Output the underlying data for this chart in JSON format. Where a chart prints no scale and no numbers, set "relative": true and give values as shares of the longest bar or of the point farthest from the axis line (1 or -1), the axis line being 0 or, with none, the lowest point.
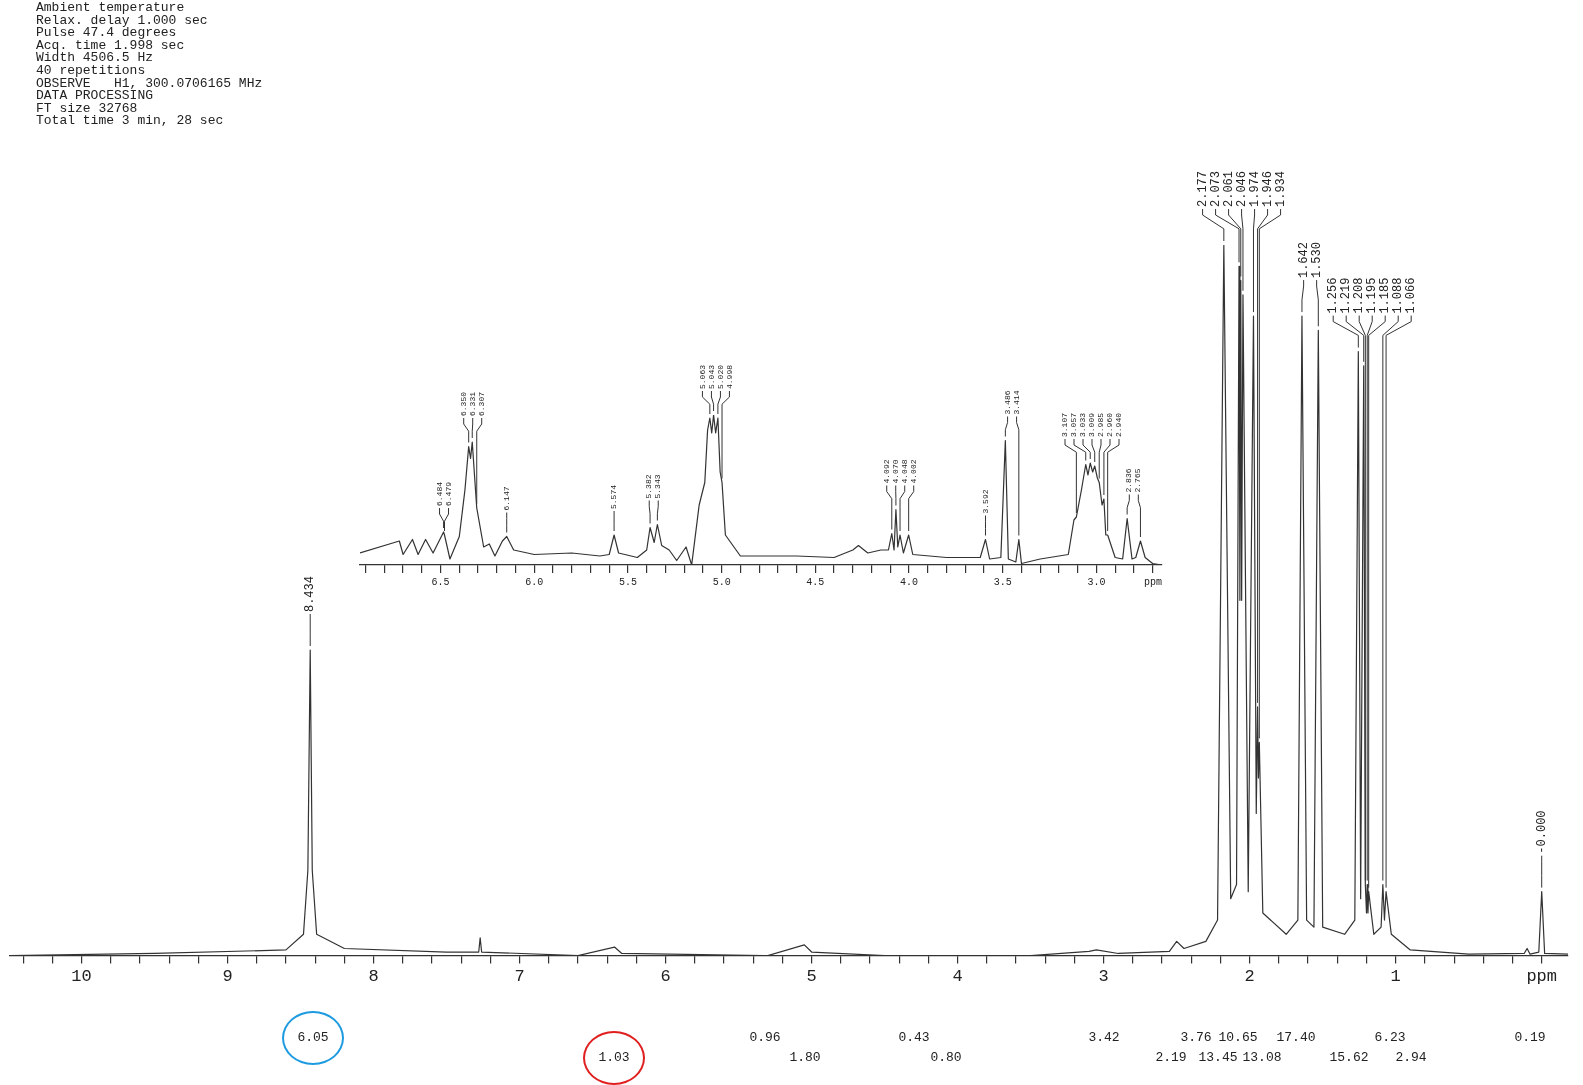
{
  "chart_data": [
    {
      "type": "line",
      "relative": true,
      "x": [
        10.49,
        9.5,
        8.6,
        8.48,
        8.45,
        8.434,
        8.42,
        8.39,
        8.2,
        7.5,
        7.28,
        7.27,
        7.26,
        6.6,
        6.35,
        6.3,
        5.3,
        5.05,
        5.0,
        4.5,
        3.5,
        3.1,
        3.05,
        2.9,
        2.55,
        2.5,
        2.45,
        2.3,
        2.22,
        2.177,
        2.13,
        2.09,
        2.073,
        2.067,
        2.061,
        2.055,
        2.046,
        2.01,
        1.974,
        1.955,
        1.946,
        1.94,
        1.934,
        1.91,
        1.75,
        1.67,
        1.642,
        1.61,
        1.56,
        1.53,
        1.5,
        1.35,
        1.28,
        1.256,
        1.24,
        1.219,
        1.208,
        1.2,
        1.195,
        1.19,
        1.185,
        1.15,
        1.1,
        1.088,
        1.077,
        1.066,
        1.03,
        0.9,
        0.5,
        0.12,
        0.1,
        0.08,
        0.02,
        0.0,
        -0.02,
        -0.18
      ],
      "series": [
        {
          "color": "#333333",
          "values": [
            0.0,
            0.003,
            0.008,
            0.03,
            0.12,
            0.43,
            0.12,
            0.03,
            0.01,
            0.005,
            0.005,
            0.025,
            0.005,
            0.0,
            0.012,
            0.003,
            0.0,
            0.015,
            0.005,
            0.0,
            0.0,
            0.006,
            0.008,
            0.003,
            0.006,
            0.02,
            0.01,
            0.02,
            0.05,
            1.0,
            0.08,
            0.1,
            0.97,
            0.5,
            0.95,
            0.5,
            0.93,
            0.09,
            0.9,
            0.2,
            0.35,
            0.25,
            0.3,
            0.06,
            0.03,
            0.05,
            0.9,
            0.05,
            0.04,
            0.88,
            0.04,
            0.03,
            0.05,
            0.85,
            0.08,
            0.83,
            0.1,
            0.06,
            0.1,
            0.06,
            0.09,
            0.03,
            0.04,
            0.1,
            0.05,
            0.09,
            0.03,
            0.008,
            0.002,
            0.003,
            0.01,
            0.002,
            0.005,
            0.09,
            0.003,
            0.002
          ]
        }
      ],
      "xlim": [
        10.49,
        -0.18
      ],
      "xticks": [
        10,
        {
          "value": 10.4,
          "label": null
        },
        {
          "value": 10.2,
          "label": null
        },
        {
          "value": 9.8,
          "label": null
        },
        {
          "value": 9.6,
          "label": null
        },
        {
          "value": 9.4,
          "label": null
        },
        {
          "value": 9.2,
          "label": null
        },
        9,
        {
          "value": 8.8,
          "label": null
        },
        {
          "value": 8.6,
          "label": null
        },
        {
          "value": 8.4,
          "label": null
        },
        {
          "value": 8.2,
          "label": null
        },
        8,
        {
          "value": 7.8,
          "label": null
        },
        {
          "value": 7.6,
          "label": null
        },
        {
          "value": 7.4,
          "label": null
        },
        {
          "value": 7.2,
          "label": null
        },
        7,
        {
          "value": 6.8,
          "label": null
        },
        {
          "value": 6.6,
          "label": null
        },
        {
          "value": 6.4,
          "label": null
        },
        {
          "value": 6.2,
          "label": null
        },
        6,
        {
          "value": 5.8,
          "label": null
        },
        {
          "value": 5.6,
          "label": null
        },
        {
          "value": 5.4,
          "label": null
        },
        {
          "value": 5.2,
          "label": null
        },
        5,
        {
          "value": 4.8,
          "label": null
        },
        {
          "value": 4.6,
          "label": null
        },
        {
          "value": 4.4,
          "label": null
        },
        {
          "value": 4.2,
          "label": null
        },
        4,
        {
          "value": 3.8,
          "label": null
        },
        {
          "value": 3.6,
          "label": null
        },
        {
          "value": 3.4,
          "label": null
        },
        {
          "value": 3.2,
          "label": null
        },
        3,
        {
          "value": 2.8,
          "label": null
        },
        {
          "value": 2.6,
          "label": null
        },
        {
          "value": 2.4,
          "label": null
        },
        {
          "value": 2.2,
          "label": null
        },
        2,
        {
          "value": 1.8,
          "label": null
        },
        {
          "value": 1.6,
          "label": null
        },
        {
          "value": 1.4,
          "label": null
        },
        {
          "value": 1.2,
          "label": null
        },
        1,
        {
          "value": 0.8,
          "label": null
        },
        {
          "value": 0.6,
          "label": null
        },
        {
          "value": 0.4,
          "label": null
        },
        {
          "value": 0.2,
          "label": null
        },
        {
          "value": 0,
          "label": "ppm"
        }
      ],
      "marker": "none",
      "annotations": [
        "Ambient temperature",
        "Relax. delay 1.000 sec",
        "Pulse 47.4 degrees",
        "Acq. time 1.998 sec",
        "Width 4506.5 Hz",
        "40 repetitions",
        "OBSERVE   H1, 300.0706165 MHz",
        "DATA PROCESSING",
        "FT size 32768",
        "Total time 3 min, 28 sec",
        {
          "text": "8.434",
          "x": 8.434,
          "y": 0.43
        },
        {
          "text": "2.177",
          "x": 2.177,
          "y": 1.0
        },
        {
          "text": "2.073",
          "x": 2.073,
          "y": 0.97
        },
        {
          "text": "2.061",
          "x": 2.061,
          "y": 0.95
        },
        {
          "text": "2.046",
          "x": 2.046,
          "y": 0.93
        },
        {
          "text": "1.974",
          "x": 1.974,
          "y": 0.9
        },
        {
          "text": "1.946",
          "x": 1.946,
          "y": 0.35
        },
        {
          "text": "1.934",
          "x": 1.934,
          "y": 0.3
        },
        {
          "text": "1.642",
          "x": 1.642,
          "y": 0.9
        },
        {
          "text": "1.530",
          "x": 1.53,
          "y": 0.88
        },
        {
          "text": "1.256",
          "x": 1.256,
          "y": 0.85
        },
        {
          "text": "1.219",
          "x": 1.219,
          "y": 0.83
        },
        {
          "text": "1.208",
          "x": 1.208,
          "y": 0.1
        },
        {
          "text": "1.195",
          "x": 1.195,
          "y": 0.1
        },
        {
          "text": "1.185",
          "x": 1.185,
          "y": 0.09
        },
        {
          "text": "1.088",
          "x": 1.088,
          "y": 0.1
        },
        {
          "text": "1.066",
          "x": 1.066,
          "y": 0.09
        },
        {
          "text": "-0.000",
          "x": 0,
          "y": 0.09
        },
        "6.05",
        "1.03",
        "0.96",
        "1.80",
        "0.43",
        "0.80",
        "3.42",
        "2.19",
        "3.76",
        "13.45",
        "10.65",
        "13.08",
        "17.40",
        "15.62",
        "6.23",
        "2.94",
        "0.19"
      ]
    },
    {
      "type": "line",
      "relative": true,
      "xlabel": "ppm",
      "x": [
        6.93,
        6.72,
        6.7,
        6.65,
        6.62,
        6.58,
        6.54,
        6.484,
        6.479,
        6.45,
        6.4,
        6.37,
        6.35,
        6.34,
        6.331,
        6.307,
        6.27,
        6.24,
        6.21,
        6.17,
        6.147,
        6.11,
        6.0,
        5.8,
        5.65,
        5.6,
        5.574,
        5.55,
        5.45,
        5.4,
        5.382,
        5.36,
        5.343,
        5.32,
        5.28,
        5.24,
        5.19,
        5.16,
        5.12,
        5.09,
        5.075,
        5.063,
        5.053,
        5.043,
        5.032,
        5.02,
        5.008,
        4.998,
        4.98,
        4.9,
        4.8,
        4.6,
        4.4,
        4.3,
        4.27,
        4.22,
        4.15,
        4.11,
        4.092,
        4.08,
        4.07,
        4.06,
        4.048,
        4.03,
        4.002,
        3.98,
        3.8,
        3.62,
        3.592,
        3.57,
        3.51,
        3.486,
        3.47,
        3.43,
        3.414,
        3.4,
        3.3,
        3.25,
        3.15,
        3.12,
        3.107,
        3.08,
        3.057,
        3.045,
        3.033,
        3.02,
        3.009,
        2.995,
        2.985,
        2.97,
        2.96,
        2.95,
        2.94,
        2.9,
        2.86,
        2.836,
        2.81,
        2.79,
        2.765,
        2.74,
        2.7,
        2.65
      ],
      "series": [
        {
          "color": "#333333",
          "values": [
            0.08,
            0.16,
            0.07,
            0.17,
            0.07,
            0.17,
            0.08,
            0.22,
            0.2,
            0.04,
            0.19,
            0.5,
            0.79,
            0.71,
            0.82,
            0.38,
            0.12,
            0.14,
            0.06,
            0.16,
            0.19,
            0.1,
            0.07,
            0.08,
            0.06,
            0.07,
            0.2,
            0.08,
            0.05,
            0.1,
            0.25,
            0.15,
            0.27,
            0.13,
            0.1,
            0.03,
            0.12,
            0,
            0.4,
            0.55,
            0.9,
            0.98,
            0.88,
            1,
            0.88,
            0.98,
            0.62,
            0.55,
            0.2,
            0.06,
            0.06,
            0.06,
            0.05,
            0.1,
            0.13,
            0.08,
            0.1,
            0.1,
            0.21,
            0.1,
            0.37,
            0.12,
            0.2,
            0.08,
            0.2,
            0.07,
            0.05,
            0.05,
            0.17,
            0.04,
            0.05,
            0.83,
            0.04,
            0.02,
            0.17,
            0.01,
            0.04,
            0.05,
            0.07,
            0.3,
            0.32,
            0.5,
            0.67,
            0.6,
            0.68,
            0.62,
            0.66,
            0.58,
            0.55,
            0.4,
            0.44,
            0.2,
            0.2,
            0.05,
            0.04,
            0.31,
            0.04,
            0.05,
            0.16,
            0.05,
            0.01,
            0
          ]
        }
      ],
      "xlim": [
        6.93,
        2.65
      ],
      "xticks": [
        {
          "value": 6.9,
          "label": null
        },
        {
          "value": 6.8,
          "label": null
        },
        {
          "value": 6.7,
          "label": null
        },
        {
          "value": 6.6,
          "label": null
        },
        6.5,
        {
          "value": 6.4,
          "label": null
        },
        {
          "value": 6.3,
          "label": null
        },
        {
          "value": 6.2,
          "label": null
        },
        {
          "value": 6.1,
          "label": null
        },
        {
          "value": 6,
          "label": "6.0"
        },
        {
          "value": 5.9,
          "label": null
        },
        {
          "value": 5.8,
          "label": null
        },
        {
          "value": 5.7,
          "label": null
        },
        {
          "value": 5.6,
          "label": null
        },
        5.5,
        {
          "value": 5.4,
          "label": null
        },
        {
          "value": 5.3,
          "label": null
        },
        {
          "value": 5.2,
          "label": null
        },
        {
          "value": 5.1,
          "label": null
        },
        {
          "value": 5,
          "label": "5.0"
        },
        {
          "value": 4.9,
          "label": null
        },
        {
          "value": 4.8,
          "label": null
        },
        {
          "value": 4.7,
          "label": null
        },
        {
          "value": 4.6,
          "label": null
        },
        4.5,
        {
          "value": 4.4,
          "label": null
        },
        {
          "value": 4.3,
          "label": null
        },
        {
          "value": 4.2,
          "label": null
        },
        {
          "value": 4.1,
          "label": null
        },
        {
          "value": 4,
          "label": "4.0"
        },
        {
          "value": 3.9,
          "label": null
        },
        {
          "value": 3.8,
          "label": null
        },
        {
          "value": 3.7,
          "label": null
        },
        {
          "value": 3.6,
          "label": null
        },
        3.5,
        {
          "value": 3.4,
          "label": null
        },
        {
          "value": 3.3,
          "label": null
        },
        {
          "value": 3.2,
          "label": null
        },
        {
          "value": 3.1,
          "label": null
        },
        {
          "value": 3,
          "label": "3.0"
        },
        {
          "value": 2.9,
          "label": null
        },
        {
          "value": 2.8,
          "label": null
        },
        {
          "value": 2.7,
          "label": null
        }
      ],
      "marker": "none",
      "annotations": [
        {
          "text": "6.484",
          "x": 6.484,
          "y": 0.22
        },
        {
          "text": "6.479",
          "x": 6.479,
          "y": 0.2
        },
        {
          "text": "6.350",
          "x": 6.35,
          "y": 0.79
        },
        {
          "text": "6.331",
          "x": 6.331,
          "y": 0.82
        },
        {
          "text": "6.307",
          "x": 6.307,
          "y": 0.38
        },
        {
          "text": "6.147",
          "x": 6.147,
          "y": 0.19
        },
        {
          "text": "5.574",
          "x": 5.574,
          "y": 0.2
        },
        {
          "text": "5.382",
          "x": 5.382,
          "y": 0.25
        },
        {
          "text": "5.343",
          "x": 5.343,
          "y": 0.27
        },
        {
          "text": "5.063",
          "x": 5.063,
          "y": 0.98
        },
        {
          "text": "5.043",
          "x": 5.043,
          "y": 1
        },
        {
          "text": "5.020",
          "x": 5.02,
          "y": 0.98
        },
        {
          "text": "4.998",
          "x": 4.998,
          "y": 0.55
        },
        {
          "text": "4.092",
          "x": 4.092,
          "y": 0.21
        },
        {
          "text": "4.070",
          "x": 4.07,
          "y": 0.37
        },
        {
          "text": "4.048",
          "x": 4.048,
          "y": 0.2
        },
        {
          "text": "4.002",
          "x": 4.002,
          "y": 0.2
        },
        {
          "text": "3.592",
          "x": 3.592,
          "y": 0.17
        },
        {
          "text": "3.486",
          "x": 3.486,
          "y": 0.83
        },
        {
          "text": "3.414",
          "x": 3.414,
          "y": 0.17
        },
        {
          "text": "3.107",
          "x": 3.107,
          "y": 0.32
        },
        {
          "text": "3.057",
          "x": 3.057,
          "y": 0.67
        },
        {
          "text": "3.033",
          "x": 3.033,
          "y": 0.68
        },
        {
          "text": "3.009",
          "x": 3.009,
          "y": 0.66
        },
        {
          "text": "2.985",
          "x": 2.985,
          "y": 0.55
        },
        {
          "text": "2.960",
          "x": 2.96,
          "y": 0.44
        },
        {
          "text": "2.940",
          "x": 2.94,
          "y": 0.2
        },
        {
          "text": "2.836",
          "x": 2.836,
          "y": 0.31
        },
        {
          "text": "2.765",
          "x": 2.765,
          "y": 0.16
        }
      ]
    }
  ]
}
